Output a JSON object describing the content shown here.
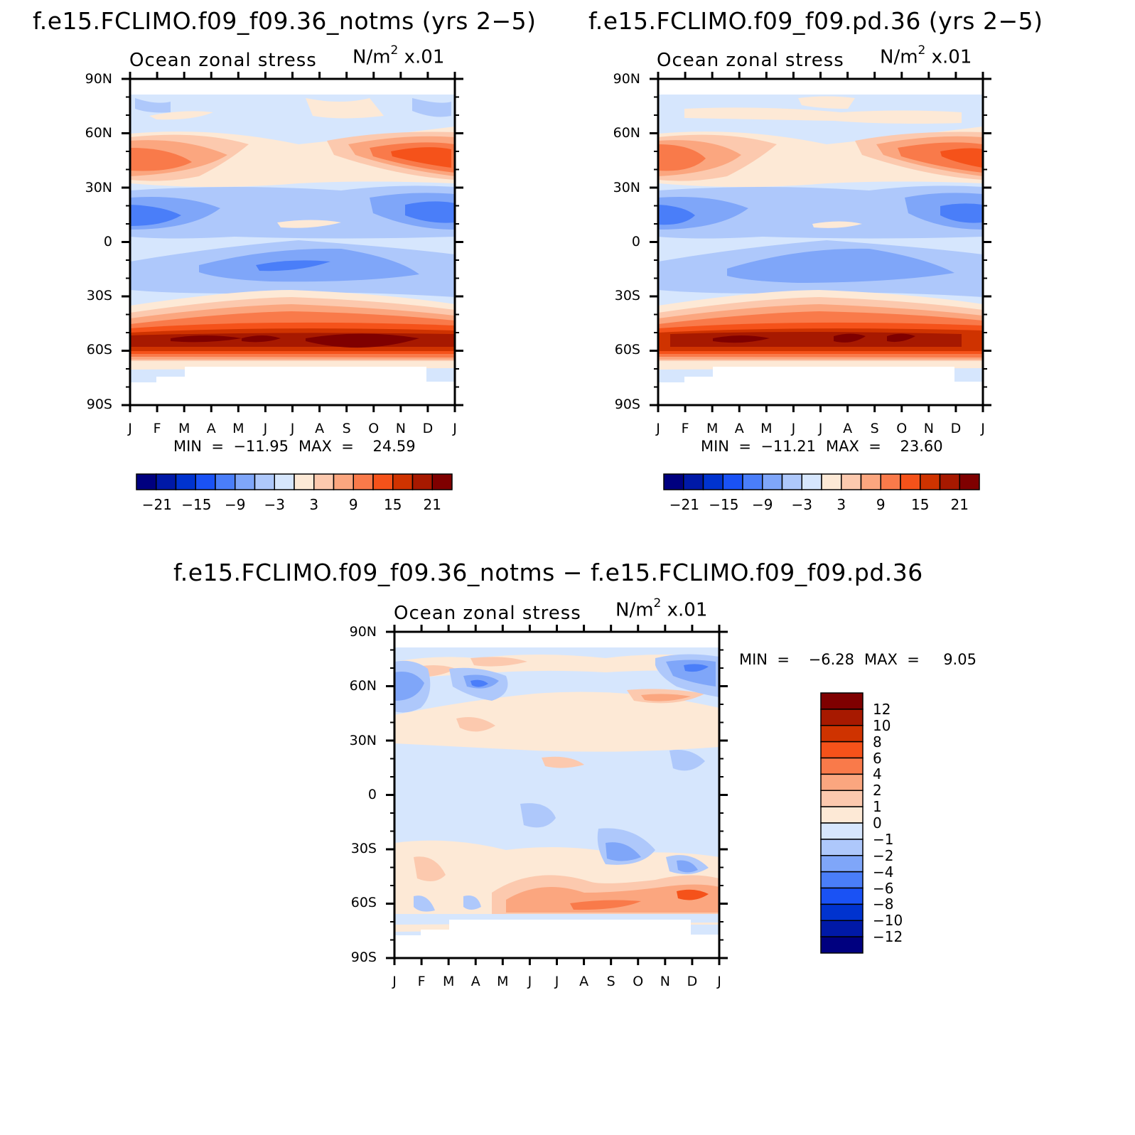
{
  "chart_data": [
    {
      "type": "heatmap",
      "title": "f.e15.FCLIMO.f09_f09.36_notms (yrs 2−5)",
      "subtitle": "Ocean zonal stress",
      "units": "N/m² x.01",
      "x_labels": [
        "J",
        "F",
        "M",
        "A",
        "M",
        "J",
        "J",
        "A",
        "S",
        "O",
        "N",
        "D",
        "J"
      ],
      "y_labels": [
        "90N",
        "60N",
        "30N",
        "0",
        "30S",
        "60S",
        "90S"
      ],
      "ylim": [
        -90,
        90
      ],
      "min_label": "MIN  =  −11.95",
      "max_label": "MAX  =    24.59",
      "colorbar_labels": [
        "−21",
        "−15",
        "−9",
        "−3",
        "3",
        "9",
        "15",
        "21"
      ],
      "zonal_profile": [
        {
          "lat": 75,
          "value": -1
        },
        {
          "lat": 48,
          "value": 12
        },
        {
          "lat": 15,
          "value": -9
        },
        {
          "lat": -20,
          "value": -6
        },
        {
          "lat": -55,
          "value": 22
        }
      ]
    },
    {
      "type": "heatmap",
      "title": "f.e15.FCLIMO.f09_f09.pd.36 (yrs 2−5)",
      "subtitle": "Ocean zonal stress",
      "units": "N/m² x.01",
      "x_labels": [
        "J",
        "F",
        "M",
        "A",
        "M",
        "J",
        "J",
        "A",
        "S",
        "O",
        "N",
        "D",
        "J"
      ],
      "y_labels": [
        "90N",
        "60N",
        "30N",
        "0",
        "30S",
        "60S",
        "90S"
      ],
      "ylim": [
        -90,
        90
      ],
      "min_label": "MIN  =  −11.21",
      "max_label": "MAX  =    23.60",
      "colorbar_labels": [
        "−21",
        "−15",
        "−9",
        "−3",
        "3",
        "9",
        "15",
        "21"
      ],
      "zonal_profile": [
        {
          "lat": 75,
          "value": -1
        },
        {
          "lat": 48,
          "value": 11
        },
        {
          "lat": 15,
          "value": -9
        },
        {
          "lat": -20,
          "value": -5
        },
        {
          "lat": -55,
          "value": 21
        }
      ]
    },
    {
      "type": "heatmap",
      "title": "f.e15.FCLIMO.f09_f09.36_notms − f.e15.FCLIMO.f09_f09.pd.36",
      "subtitle": "Ocean zonal stress",
      "units": "N/m² x.01",
      "x_labels": [
        "J",
        "F",
        "M",
        "A",
        "M",
        "J",
        "J",
        "A",
        "S",
        "O",
        "N",
        "D",
        "J"
      ],
      "y_labels": [
        "90N",
        "60N",
        "30N",
        "0",
        "30S",
        "60S",
        "90S"
      ],
      "ylim": [
        -90,
        90
      ],
      "min_label": "MIN  =    −6.28",
      "max_label": "MAX  =     9.05",
      "colorbar_labels": [
        "12",
        "10",
        "8",
        "6",
        "4",
        "2",
        "1",
        "0",
        "−1",
        "−2",
        "−4",
        "−6",
        "−8",
        "−10",
        "−12"
      ]
    }
  ],
  "colors": {
    "diverging_16": [
      "#00007f",
      "#0019a7",
      "#0033cf",
      "#1a52f5",
      "#4a7ef9",
      "#7fa6f9",
      "#aec8fb",
      "#d6e6fd",
      "#fde9d6",
      "#fcc9ae",
      "#fba67f",
      "#f97a4a",
      "#f5521a",
      "#cf3300",
      "#a71900",
      "#7f0000"
    ]
  }
}
